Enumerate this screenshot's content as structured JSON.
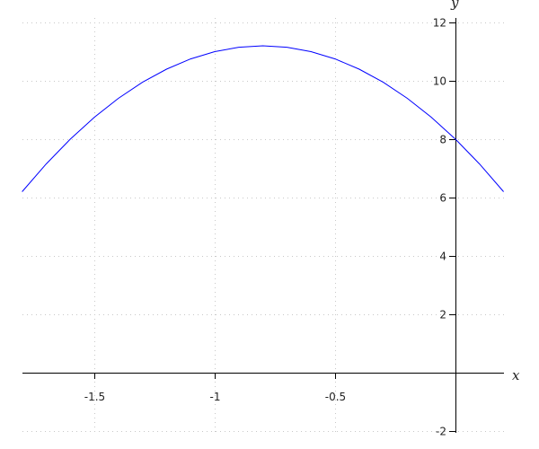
{
  "chart_data": {
    "type": "line",
    "title": "",
    "xlabel": "x",
    "ylabel": "y",
    "xlim": [
      -1.8,
      0.2
    ],
    "ylim": [
      -2,
      12
    ],
    "grid": true,
    "x_ticks": [
      -1.5,
      -1,
      -0.5
    ],
    "x_tick_labels": [
      "-1.5",
      "-1",
      "-0.5"
    ],
    "y_ticks": [
      -2,
      2,
      4,
      6,
      8,
      10,
      12
    ],
    "y_tick_labels": [
      "-2",
      "2",
      "4",
      "6",
      "8",
      "10",
      "12"
    ],
    "series": [
      {
        "color": "#0000ff",
        "x": [
          -1.8,
          -1.7,
          -1.6,
          -1.5,
          -1.4,
          -1.3,
          -1.2,
          -1.1,
          -1.0,
          -0.9,
          -0.8,
          -0.7,
          -0.6,
          -0.5,
          -0.4,
          -0.3,
          -0.2,
          -0.1,
          0.0,
          0.1,
          0.2
        ],
        "y": [
          6.2,
          7.15,
          8.0,
          8.75,
          9.4,
          9.95,
          10.4,
          10.75,
          11.0,
          11.15,
          11.2,
          11.15,
          11.0,
          10.75,
          10.4,
          9.95,
          9.4,
          8.75,
          8.0,
          7.15,
          6.2
        ]
      }
    ]
  }
}
